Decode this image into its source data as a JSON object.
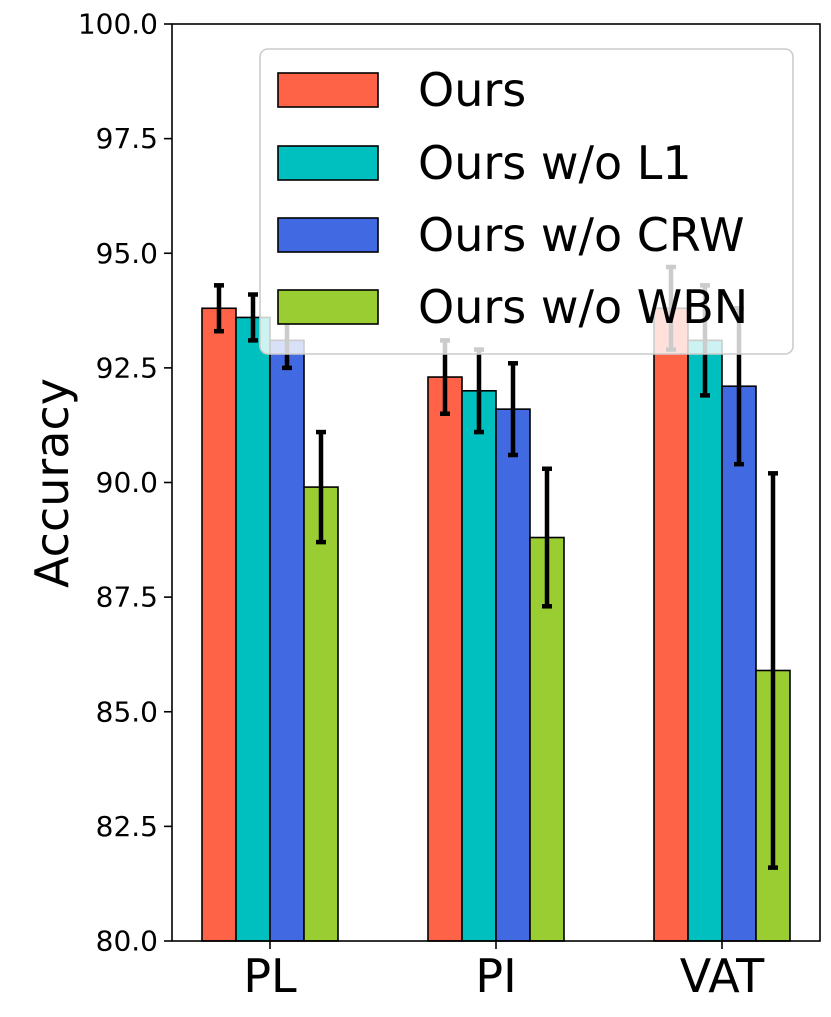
{
  "chart_data": {
    "type": "bar",
    "title": "",
    "xlabel": "",
    "ylabel": "Accuracy",
    "ylim": [
      80.0,
      100.0
    ],
    "yticks": [
      "80.0",
      "82.5",
      "85.0",
      "87.5",
      "90.0",
      "92.5",
      "95.0",
      "97.5",
      "100.0"
    ],
    "yticks_values": [
      80.0,
      82.5,
      85.0,
      87.5,
      90.0,
      92.5,
      95.0,
      97.5,
      100.0
    ],
    "categories": [
      "PL",
      "PI",
      "VAT"
    ],
    "legend_position": "top-right",
    "series": [
      {
        "name": "Ours",
        "color": "#ff6347",
        "values": [
          93.8,
          92.3,
          93.8
        ],
        "errors": [
          0.5,
          0.8,
          0.9
        ]
      },
      {
        "name": "Ours w/o L1",
        "color": "#00bfbf",
        "values": [
          93.6,
          92.0,
          93.1
        ],
        "errors": [
          0.5,
          0.9,
          1.2
        ]
      },
      {
        "name": "Ours w/o CRW",
        "color": "#4169e1",
        "values": [
          93.1,
          91.6,
          92.1
        ],
        "errors": [
          0.6,
          1.0,
          1.7
        ]
      },
      {
        "name": "Ours w/o WBN",
        "color": "#9acd32",
        "values": [
          89.9,
          88.8,
          85.9
        ],
        "errors": [
          1.2,
          1.5,
          4.3
        ]
      }
    ]
  }
}
